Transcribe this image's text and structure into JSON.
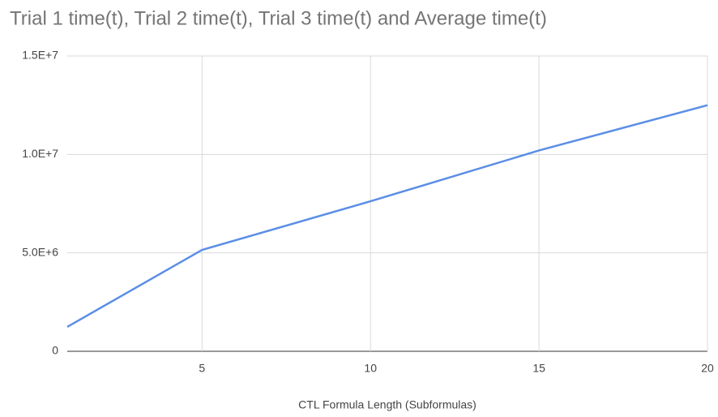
{
  "chart_data": {
    "type": "line",
    "title": "Trial 1 time(t), Trial 2 time(t), Trial 3 time(t) and Average time(t)",
    "x_label": "CTL Formula Length (Subformulas)",
    "x": [
      1,
      5,
      10,
      15,
      20
    ],
    "series": [
      {
        "color": "#5b8ee6",
        "values": [
          1240000,
          5150000,
          7620000,
          10200000,
          12500000
        ]
      }
    ],
    "xlim": [
      1,
      20
    ],
    "xticks": [
      5,
      10,
      15,
      20
    ],
    "ylim": [
      0,
      15000000
    ],
    "yticks": [
      0,
      {
        "value": 5000000,
        "label": "5.0E+6"
      },
      {
        "value": 10000000,
        "label": "1.0E+7"
      },
      {
        "value": 15000000,
        "label": "1.5E+7"
      }
    ],
    "grid": true
  }
}
